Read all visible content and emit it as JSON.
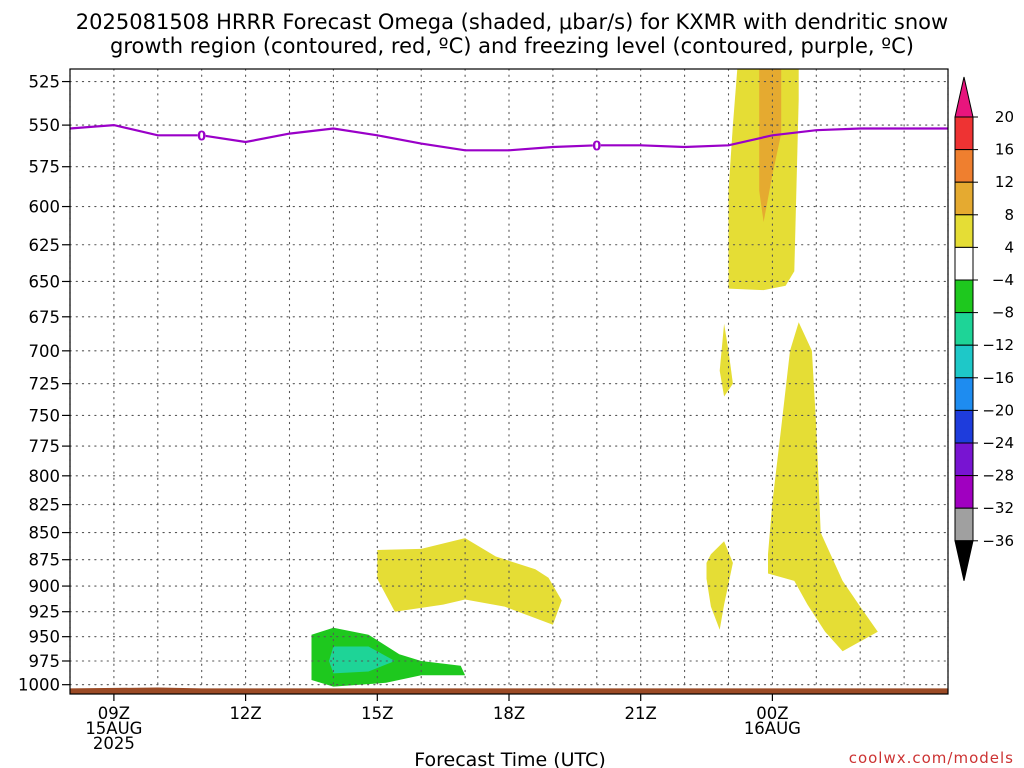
{
  "title_line1": "2025081508 HRRR Forecast Omega (shaded, μbar/s) for KXMR with dendritic snow",
  "title_line2": "growth region (contoured, red, ºC) and freezing level (contoured, purple, ºC)",
  "xlabel": "Forecast Time (UTC)",
  "credit": "coolwx.com/models",
  "colors": {
    "freezing_line": "#9a00c8",
    "ground": "#9b4a25",
    "grid": "#555555"
  },
  "chart_data": {
    "type": "contour",
    "xlabel": "Forecast Time (UTC)",
    "ylabel": "",
    "x_range_utc_hours_from_15Aug_00Z": [
      8,
      28
    ],
    "y_range_hPa": [
      1010,
      518
    ],
    "y_scale": "log-pressure",
    "grid": true,
    "y_ticks": [
      525,
      550,
      575,
      600,
      625,
      650,
      675,
      700,
      725,
      750,
      775,
      800,
      825,
      850,
      875,
      900,
      925,
      950,
      975,
      1000
    ],
    "x_ticks": [
      {
        "hour": 9,
        "lines": [
          "09Z",
          "15AUG",
          "2025"
        ]
      },
      {
        "hour": 12,
        "lines": [
          "12Z"
        ]
      },
      {
        "hour": 15,
        "lines": [
          "15Z"
        ]
      },
      {
        "hour": 18,
        "lines": [
          "18Z"
        ]
      },
      {
        "hour": 21,
        "lines": [
          "21Z"
        ]
      },
      {
        "hour": 24,
        "lines": [
          "00Z",
          "16AUG"
        ]
      }
    ],
    "colorbar": {
      "unit": "μbar/s",
      "labels": [
        "20",
        "16",
        "12",
        "8",
        "4",
        "−4",
        "−8",
        "−12",
        "−16",
        "−20",
        "−24",
        "−28",
        "−32",
        "−36"
      ],
      "bins": [
        {
          "range": "16 to 20",
          "color": "#ee3333"
        },
        {
          "range": "12 to 16",
          "color": "#ef7f2f"
        },
        {
          "range": "8 to 12",
          "color": "#e5aa30"
        },
        {
          "range": "4 to 8",
          "color": "#e5dd35"
        },
        {
          "range": "-4 to 4",
          "color": "#ffffff"
        },
        {
          "range": "-8 to -4",
          "color": "#1ec81e"
        },
        {
          "range": "-12 to -8",
          "color": "#1ed497"
        },
        {
          "range": "-16 to -12",
          "color": "#1ec8c8"
        },
        {
          "range": "-20 to -16",
          "color": "#1e8cf0"
        },
        {
          "range": "-24 to -20",
          "color": "#1e3cdc"
        },
        {
          "range": "-28 to -24",
          "color": "#7814d2"
        },
        {
          "range": "-32 to -28",
          "color": "#a000c0"
        },
        {
          "range": "-36 to -32",
          "color": "#a0a0a0"
        }
      ],
      "top_extension_color": "#e8157d",
      "bottom_extension_color": "#000000"
    },
    "freezing_level": {
      "label": "0",
      "label_hours": [
        11,
        20
      ],
      "points": [
        [
          8,
          552
        ],
        [
          9,
          550
        ],
        [
          10,
          556
        ],
        [
          11,
          556
        ],
        [
          12,
          560
        ],
        [
          13,
          555
        ],
        [
          14,
          552
        ],
        [
          15,
          556
        ],
        [
          16,
          561
        ],
        [
          17,
          565
        ],
        [
          18,
          565
        ],
        [
          19,
          563
        ],
        [
          20,
          562
        ],
        [
          21,
          562
        ],
        [
          22,
          563
        ],
        [
          23,
          562
        ],
        [
          24,
          556
        ],
        [
          25,
          553
        ],
        [
          26,
          552
        ],
        [
          27,
          552
        ],
        [
          28,
          552
        ]
      ]
    },
    "omega_regions": [
      {
        "bin": "4 to 8",
        "points": [
          [
            23.2,
            518
          ],
          [
            24.6,
            518
          ],
          [
            24.6,
            535
          ],
          [
            24.5,
            643
          ],
          [
            24.3,
            653
          ],
          [
            23.8,
            656
          ],
          [
            23.0,
            655
          ],
          [
            23.0,
            590
          ],
          [
            23.1,
            550
          ]
        ]
      },
      {
        "bin": "8 to 12",
        "points": [
          [
            23.7,
            518
          ],
          [
            24.2,
            518
          ],
          [
            24.2,
            555
          ],
          [
            24.0,
            580
          ],
          [
            23.8,
            610
          ],
          [
            23.7,
            590
          ],
          [
            23.7,
            555
          ]
        ]
      },
      {
        "bin": "4 to 8",
        "points": [
          [
            22.9,
            680
          ],
          [
            23.0,
            700
          ],
          [
            23.1,
            725
          ],
          [
            22.9,
            735
          ],
          [
            22.8,
            715
          ]
        ]
      },
      {
        "bin": "4 to 8",
        "points": [
          [
            22.6,
            870
          ],
          [
            22.9,
            858
          ],
          [
            23.1,
            878
          ],
          [
            22.9,
            918
          ],
          [
            22.8,
            943
          ],
          [
            22.6,
            920
          ],
          [
            22.5,
            893
          ],
          [
            22.5,
            878
          ]
        ]
      },
      {
        "bin": "4 to 8",
        "points": [
          [
            24.0,
            823
          ],
          [
            24.2,
            760
          ],
          [
            24.4,
            700
          ],
          [
            24.6,
            679
          ],
          [
            24.9,
            700
          ],
          [
            25.0,
            760
          ],
          [
            25.1,
            850
          ],
          [
            25.6,
            895
          ],
          [
            26.0,
            920
          ],
          [
            26.4,
            945
          ],
          [
            25.6,
            965
          ],
          [
            25.2,
            945
          ],
          [
            24.8,
            918
          ],
          [
            24.5,
            895
          ],
          [
            23.9,
            888
          ],
          [
            23.9,
            870
          ]
        ]
      },
      {
        "bin": "4 to 8",
        "points": [
          [
            15.0,
            866
          ],
          [
            16.0,
            865
          ],
          [
            17.0,
            855
          ],
          [
            17.7,
            872
          ],
          [
            18.6,
            884
          ],
          [
            18.9,
            892
          ],
          [
            19.2,
            914
          ],
          [
            19.0,
            938
          ],
          [
            17.9,
            920
          ],
          [
            17.0,
            913
          ],
          [
            16.5,
            918
          ],
          [
            15.4,
            925
          ],
          [
            15.0,
            893
          ]
        ]
      },
      {
        "bin": "-8 to -4",
        "points": [
          [
            13.5,
            948
          ],
          [
            14.0,
            941
          ],
          [
            14.8,
            948
          ],
          [
            15.5,
            968
          ],
          [
            16.0,
            975
          ],
          [
            16.9,
            980
          ],
          [
            17.0,
            990
          ],
          [
            16.0,
            990
          ],
          [
            15.2,
            998
          ],
          [
            14.0,
            1002
          ],
          [
            13.5,
            995
          ],
          [
            13.5,
            970
          ]
        ]
      },
      {
        "bin": "-12 to -8",
        "points": [
          [
            14.0,
            960
          ],
          [
            14.8,
            960
          ],
          [
            15.4,
            975
          ],
          [
            14.8,
            986
          ],
          [
            14.0,
            988
          ],
          [
            13.9,
            975
          ]
        ]
      }
    ],
    "ground": {
      "top_hPa": [
        [
          8,
          1004
        ],
        [
          10,
          1003
        ],
        [
          11,
          1004
        ],
        [
          28,
          1004
        ]
      ]
    }
  }
}
